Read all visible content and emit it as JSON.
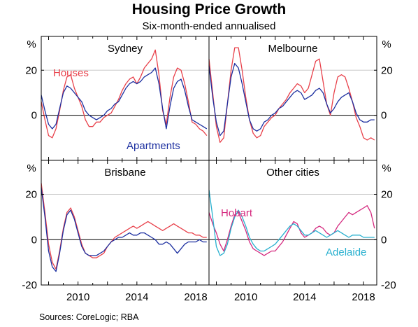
{
  "title": "Housing Price Growth",
  "subtitle": "Six-month-ended annualised",
  "source": "Sources:   CoreLogic; RBA",
  "y_unit": "%",
  "colors": {
    "houses": "#e8404a",
    "apartments": "#1c2fa0",
    "hobart": "#d4287e",
    "adelaide": "#28b0cf",
    "gridline": "#c8c8c8",
    "zero_line": "#000000"
  },
  "chart_data": [
    {
      "type": "line",
      "panel": "Sydney",
      "title": "Sydney",
      "ylim": [
        -20,
        35
      ],
      "xlim": [
        2007.5,
        2018.9
      ],
      "y_ticks_left": [
        0,
        20
      ],
      "x_ticks": [
        2010,
        2014,
        2018
      ],
      "series": [
        {
          "name": "Houses",
          "color_key": "houses",
          "x": [
            2007.5,
            2007.75,
            2008,
            2008.25,
            2008.5,
            2008.75,
            2009,
            2009.25,
            2009.5,
            2009.75,
            2010,
            2010.25,
            2010.5,
            2010.75,
            2011,
            2011.25,
            2011.5,
            2011.75,
            2012,
            2012.25,
            2012.5,
            2012.75,
            2013,
            2013.25,
            2013.5,
            2013.75,
            2014,
            2014.25,
            2014.5,
            2014.75,
            2015,
            2015.25,
            2015.5,
            2015.75,
            2016,
            2016.25,
            2016.5,
            2016.75,
            2017,
            2017.25,
            2017.5,
            2017.75,
            2018,
            2018.25,
            2018.5,
            2018.75
          ],
          "y": [
            6,
            -2,
            -9,
            -10,
            -6,
            2,
            11,
            17,
            18,
            12,
            8,
            4,
            -2,
            -5,
            -5,
            -3,
            -3,
            -1,
            0,
            1,
            4,
            7,
            11,
            14,
            16,
            17,
            14,
            17,
            21,
            23,
            25,
            29,
            18,
            2,
            -4,
            8,
            17,
            21,
            20,
            14,
            6,
            -3,
            -4,
            -6,
            -7,
            -9
          ]
        },
        {
          "name": "Apartments",
          "color_key": "apartments",
          "x": [
            2007.5,
            2007.75,
            2008,
            2008.25,
            2008.5,
            2008.75,
            2009,
            2009.25,
            2009.5,
            2009.75,
            2010,
            2010.25,
            2010.5,
            2010.75,
            2011,
            2011.25,
            2011.5,
            2011.75,
            2012,
            2012.25,
            2012.5,
            2012.75,
            2013,
            2013.25,
            2013.5,
            2013.75,
            2014,
            2014.25,
            2014.5,
            2014.75,
            2015,
            2015.25,
            2015.5,
            2015.75,
            2016,
            2016.25,
            2016.5,
            2016.75,
            2017,
            2017.25,
            2017.5,
            2017.75,
            2018,
            2018.25,
            2018.5,
            2018.75
          ],
          "y": [
            9,
            2,
            -4,
            -6,
            -4,
            3,
            10,
            13,
            12,
            10,
            8,
            6,
            2,
            0,
            -1,
            -2,
            -1,
            0,
            2,
            3,
            5,
            6,
            9,
            12,
            14,
            15,
            14,
            15,
            17,
            18,
            19,
            21,
            14,
            3,
            -6,
            4,
            12,
            15,
            16,
            11,
            4,
            -2,
            -3,
            -4,
            -5,
            -6
          ]
        }
      ],
      "annotations": [
        {
          "text": "Houses",
          "series": "Houses",
          "color_key": "houses"
        },
        {
          "text": "Apartments",
          "series": "Apartments",
          "color_key": "apartments"
        }
      ]
    },
    {
      "type": "line",
      "panel": "Melbourne",
      "title": "Melbourne",
      "ylim": [
        -20,
        35
      ],
      "xlim": [
        2007.5,
        2018.9
      ],
      "y_ticks_right": [
        0,
        20
      ],
      "series": [
        {
          "name": "Houses",
          "color_key": "houses",
          "x": [
            2007.5,
            2007.75,
            2008,
            2008.25,
            2008.5,
            2008.75,
            2009,
            2009.25,
            2009.5,
            2009.75,
            2010,
            2010.25,
            2010.5,
            2010.75,
            2011,
            2011.25,
            2011.5,
            2011.75,
            2012,
            2012.25,
            2012.5,
            2012.75,
            2013,
            2013.25,
            2013.5,
            2013.75,
            2014,
            2014.25,
            2014.5,
            2014.75,
            2015,
            2015.25,
            2015.5,
            2015.75,
            2016,
            2016.25,
            2016.5,
            2016.75,
            2017,
            2017.25,
            2017.5,
            2017.75,
            2018,
            2018.25,
            2018.5,
            2018.75
          ],
          "y": [
            25,
            10,
            -5,
            -12,
            -10,
            5,
            20,
            30,
            30,
            20,
            8,
            -2,
            -8,
            -10,
            -9,
            -5,
            -3,
            -1,
            0,
            3,
            5,
            7,
            10,
            12,
            14,
            13,
            10,
            12,
            18,
            24,
            25,
            15,
            5,
            0,
            10,
            17,
            18,
            17,
            12,
            6,
            -1,
            -5,
            -10,
            -11,
            -10,
            -11
          ]
        },
        {
          "name": "Apartments",
          "color_key": "apartments",
          "x": [
            2007.5,
            2007.75,
            2008,
            2008.25,
            2008.5,
            2008.75,
            2009,
            2009.25,
            2009.5,
            2009.75,
            2010,
            2010.25,
            2010.5,
            2010.75,
            2011,
            2011.25,
            2011.5,
            2011.75,
            2012,
            2012.25,
            2012.5,
            2012.75,
            2013,
            2013.25,
            2013.5,
            2013.75,
            2014,
            2014.25,
            2014.5,
            2014.75,
            2015,
            2015.25,
            2015.5,
            2015.75,
            2016,
            2016.25,
            2016.5,
            2016.75,
            2017,
            2017.25,
            2017.5,
            2017.75,
            2018,
            2018.25,
            2018.5,
            2018.75
          ],
          "y": [
            22,
            8,
            -3,
            -9,
            -7,
            5,
            17,
            23,
            21,
            14,
            6,
            -2,
            -6,
            -7,
            -6,
            -3,
            -2,
            0,
            1,
            3,
            4,
            6,
            8,
            10,
            11,
            10,
            7,
            8,
            9,
            11,
            12,
            10,
            5,
            1,
            3,
            6,
            8,
            9,
            10,
            6,
            1,
            -2,
            -3,
            -3,
            -2,
            -2
          ]
        }
      ]
    },
    {
      "type": "line",
      "panel": "Brisbane",
      "title": "Brisbane",
      "ylim": [
        -20,
        35
      ],
      "xlim": [
        2007.5,
        2018.9
      ],
      "y_ticks_left": [
        -20,
        0,
        20
      ],
      "x_ticks": [
        2010,
        2014,
        2018
      ],
      "series": [
        {
          "name": "Houses",
          "color_key": "houses",
          "x": [
            2007.5,
            2007.75,
            2008,
            2008.25,
            2008.5,
            2008.75,
            2009,
            2009.25,
            2009.5,
            2009.75,
            2010,
            2010.25,
            2010.5,
            2010.75,
            2011,
            2011.25,
            2011.5,
            2011.75,
            2012,
            2012.25,
            2012.5,
            2012.75,
            2013,
            2013.25,
            2013.5,
            2013.75,
            2014,
            2014.25,
            2014.5,
            2014.75,
            2015,
            2015.25,
            2015.5,
            2015.75,
            2016,
            2016.25,
            2016.5,
            2016.75,
            2017,
            2017.25,
            2017.5,
            2017.75,
            2018,
            2018.25,
            2018.5,
            2018.75
          ],
          "y": [
            25,
            12,
            -2,
            -10,
            -13,
            -5,
            5,
            12,
            14,
            10,
            4,
            -2,
            -6,
            -7,
            -8,
            -8,
            -7,
            -6,
            -3,
            -1,
            1,
            2,
            3,
            4,
            5,
            6,
            5,
            6,
            7,
            8,
            7,
            6,
            5,
            4,
            5,
            6,
            7,
            6,
            5,
            4,
            3,
            3,
            2,
            2,
            1,
            1
          ]
        },
        {
          "name": "Apartments",
          "color_key": "apartments",
          "x": [
            2007.5,
            2007.75,
            2008,
            2008.25,
            2008.5,
            2008.75,
            2009,
            2009.25,
            2009.5,
            2009.75,
            2010,
            2010.25,
            2010.5,
            2010.75,
            2011,
            2011.25,
            2011.5,
            2011.75,
            2012,
            2012.25,
            2012.5,
            2012.75,
            2013,
            2013.25,
            2013.5,
            2013.75,
            2014,
            2014.25,
            2014.5,
            2014.75,
            2015,
            2015.25,
            2015.5,
            2015.75,
            2016,
            2016.25,
            2016.5,
            2016.75,
            2017,
            2017.25,
            2017.5,
            2017.75,
            2018,
            2018.25,
            2018.5,
            2018.75
          ],
          "y": [
            23,
            10,
            -5,
            -12,
            -14,
            -6,
            4,
            11,
            13,
            9,
            3,
            -3,
            -6,
            -7,
            -7,
            -7,
            -6,
            -5,
            -3,
            -1,
            0,
            1,
            1,
            2,
            3,
            2,
            2,
            3,
            3,
            2,
            1,
            0,
            -2,
            -2,
            -1,
            -2,
            -4,
            -6,
            -4,
            -2,
            -1,
            -1,
            -1,
            0,
            -1,
            -1
          ]
        }
      ]
    },
    {
      "type": "line",
      "panel": "Other cities",
      "title": "Other cities",
      "ylim": [
        -20,
        35
      ],
      "xlim": [
        2007.5,
        2018.9
      ],
      "y_ticks_right": [
        -20,
        0,
        20
      ],
      "x_ticks": [
        2010,
        2014,
        2018
      ],
      "series": [
        {
          "name": "Hobart",
          "color_key": "hobart",
          "x": [
            2007.5,
            2007.75,
            2008,
            2008.25,
            2008.5,
            2008.75,
            2009,
            2009.25,
            2009.5,
            2009.75,
            2010,
            2010.25,
            2010.5,
            2010.75,
            2011,
            2011.25,
            2011.5,
            2011.75,
            2012,
            2012.25,
            2012.5,
            2012.75,
            2013,
            2013.25,
            2013.5,
            2013.75,
            2014,
            2014.25,
            2014.5,
            2014.75,
            2015,
            2015.25,
            2015.5,
            2015.75,
            2016,
            2016.25,
            2016.5,
            2016.75,
            2017,
            2017.25,
            2017.5,
            2017.75,
            2018,
            2018.25,
            2018.5,
            2018.75
          ],
          "y": [
            12,
            7,
            3,
            -2,
            -5,
            0,
            6,
            11,
            12,
            8,
            4,
            -1,
            -4,
            -5,
            -6,
            -7,
            -6,
            -5,
            -5,
            -3,
            -1,
            2,
            5,
            8,
            7,
            3,
            1,
            2,
            3,
            5,
            6,
            5,
            3,
            2,
            3,
            6,
            8,
            10,
            12,
            11,
            12,
            13,
            14,
            15,
            12,
            5
          ]
        },
        {
          "name": "Adelaide",
          "color_key": "adelaide",
          "x": [
            2007.5,
            2007.75,
            2008,
            2008.25,
            2008.5,
            2008.75,
            2009,
            2009.25,
            2009.5,
            2009.75,
            2010,
            2010.25,
            2010.5,
            2010.75,
            2011,
            2011.25,
            2011.5,
            2011.75,
            2012,
            2012.25,
            2012.5,
            2012.75,
            2013,
            2013.25,
            2013.5,
            2013.75,
            2014,
            2014.25,
            2014.5,
            2014.75,
            2015,
            2015.25,
            2015.5,
            2015.75,
            2016,
            2016.25,
            2016.5,
            2016.75,
            2017,
            2017.25,
            2017.5,
            2017.75,
            2018,
            2018.25,
            2018.5,
            2018.75
          ],
          "y": [
            22,
            10,
            -3,
            -7,
            -6,
            -2,
            5,
            10,
            13,
            10,
            6,
            1,
            -2,
            -4,
            -5,
            -5,
            -4,
            -3,
            -2,
            0,
            2,
            4,
            6,
            7,
            6,
            4,
            2,
            2,
            3,
            4,
            3,
            2,
            1,
            2,
            3,
            4,
            3,
            2,
            1,
            2,
            2,
            2,
            1,
            1,
            1,
            1
          ]
        }
      ],
      "annotations": [
        {
          "text": "Hobart",
          "series": "Hobart",
          "color_key": "hobart"
        },
        {
          "text": "Adelaide",
          "series": "Adelaide",
          "color_key": "adelaide"
        }
      ]
    }
  ]
}
